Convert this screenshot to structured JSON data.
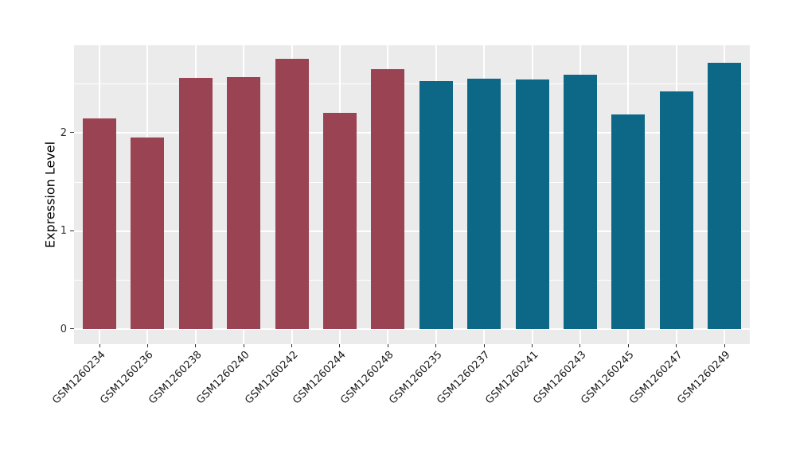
{
  "chart_data": {
    "type": "bar",
    "title": "",
    "xlabel": "",
    "ylabel": "Expression Level",
    "ylim": [
      0,
      2.89
    ],
    "yticks": [
      0,
      1,
      2
    ],
    "yticks_minor": [
      0.5,
      1.5,
      2.5
    ],
    "grid": "on",
    "legend": "none",
    "panel_bg": "#EBEBEB",
    "grid_color": "#FFFFFF",
    "tick_color": "#333333",
    "group_colors": {
      "groupA": "#9A4352",
      "groupB": "#0D6887"
    },
    "bars": [
      {
        "label": "GSM1260234",
        "value": 2.15,
        "group": "groupA"
      },
      {
        "label": "GSM1260236",
        "value": 1.95,
        "group": "groupA"
      },
      {
        "label": "GSM1260238",
        "value": 2.56,
        "group": "groupA"
      },
      {
        "label": "GSM1260240",
        "value": 2.57,
        "group": "groupA"
      },
      {
        "label": "GSM1260242",
        "value": 2.75,
        "group": "groupA"
      },
      {
        "label": "GSM1260244",
        "value": 2.2,
        "group": "groupA"
      },
      {
        "label": "GSM1260248",
        "value": 2.65,
        "group": "groupA"
      },
      {
        "label": "GSM1260235",
        "value": 2.53,
        "group": "groupB"
      },
      {
        "label": "GSM1260237",
        "value": 2.55,
        "group": "groupB"
      },
      {
        "label": "GSM1260241",
        "value": 2.54,
        "group": "groupB"
      },
      {
        "label": "GSM1260243",
        "value": 2.59,
        "group": "groupB"
      },
      {
        "label": "GSM1260245",
        "value": 2.19,
        "group": "groupB"
      },
      {
        "label": "GSM1260247",
        "value": 2.42,
        "group": "groupB"
      },
      {
        "label": "GSM1260249",
        "value": 2.71,
        "group": "groupB"
      }
    ]
  }
}
